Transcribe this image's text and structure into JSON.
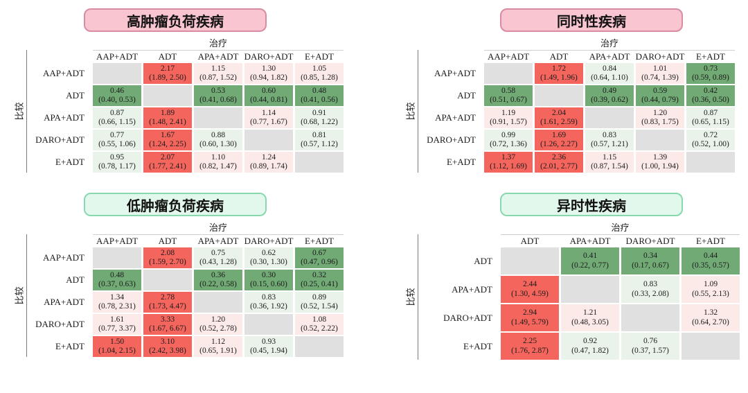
{
  "axis": {
    "treatment": "治疗",
    "comparison": "比较"
  },
  "colors": {
    "sig_red": "#f4655d",
    "ns_red": "#fbeae8",
    "sig_green": "#71aa75",
    "ns_green": "#e9f3ea",
    "diagonal": "#e0e0e0",
    "pink_header_bg": "#f8c5d1",
    "pink_header_border": "#d98ba2",
    "green_header_bg": "#e3f8ec",
    "green_header_border": "#87d8ad"
  },
  "chart_data": [
    {
      "type": "heatmap",
      "title": "高肿瘤负荷疾病",
      "theme": "pink",
      "xlabel": "治疗",
      "ylabel": "比较",
      "value_format": "hazard ratio (95% CI)",
      "columns": [
        "AAP+ADT",
        "ADT",
        "APA+ADT",
        "DARO+ADT",
        "E+ADT"
      ],
      "rows": [
        {
          "label": "AAP+ADT",
          "cells": [
            null,
            {
              "hr": 2.17,
              "ci": [
                1.89,
                2.5
              ],
              "tone": "sig_red"
            },
            {
              "hr": 1.15,
              "ci": [
                0.87,
                1.52
              ],
              "tone": "ns_red"
            },
            {
              "hr": 1.3,
              "ci": [
                0.94,
                1.82
              ],
              "tone": "ns_red"
            },
            {
              "hr": 1.05,
              "ci": [
                0.85,
                1.28
              ],
              "tone": "ns_red"
            }
          ]
        },
        {
          "label": "ADT",
          "cells": [
            {
              "hr": 0.46,
              "ci": [
                0.4,
                0.53
              ],
              "tone": "sig_green"
            },
            null,
            {
              "hr": 0.53,
              "ci": [
                0.41,
                0.68
              ],
              "tone": "sig_green"
            },
            {
              "hr": 0.6,
              "ci": [
                0.44,
                0.81
              ],
              "tone": "sig_green"
            },
            {
              "hr": 0.48,
              "ci": [
                0.41,
                0.56
              ],
              "tone": "sig_green"
            }
          ]
        },
        {
          "label": "APA+ADT",
          "cells": [
            {
              "hr": 0.87,
              "ci": [
                0.66,
                1.15
              ],
              "tone": "ns_green"
            },
            {
              "hr": 1.89,
              "ci": [
                1.48,
                2.41
              ],
              "tone": "sig_red"
            },
            null,
            {
              "hr": 1.14,
              "ci": [
                0.77,
                1.67
              ],
              "tone": "ns_red"
            },
            {
              "hr": 0.91,
              "ci": [
                0.68,
                1.22
              ],
              "tone": "ns_green"
            }
          ]
        },
        {
          "label": "DARO+ADT",
          "cells": [
            {
              "hr": 0.77,
              "ci": [
                0.55,
                1.06
              ],
              "tone": "ns_green"
            },
            {
              "hr": 1.67,
              "ci": [
                1.24,
                2.25
              ],
              "tone": "sig_red"
            },
            {
              "hr": 0.88,
              "ci": [
                0.6,
                1.3
              ],
              "tone": "ns_green"
            },
            null,
            {
              "hr": 0.81,
              "ci": [
                0.57,
                1.12
              ],
              "tone": "ns_green"
            }
          ]
        },
        {
          "label": "E+ADT",
          "cells": [
            {
              "hr": 0.95,
              "ci": [
                0.78,
                1.17
              ],
              "tone": "ns_green"
            },
            {
              "hr": 2.07,
              "ci": [
                1.77,
                2.41
              ],
              "tone": "sig_red"
            },
            {
              "hr": 1.1,
              "ci": [
                0.82,
                1.47
              ],
              "tone": "ns_red"
            },
            {
              "hr": 1.24,
              "ci": [
                0.89,
                1.74
              ],
              "tone": "ns_red"
            },
            null
          ]
        }
      ]
    },
    {
      "type": "heatmap",
      "title": "同时性疾病",
      "theme": "pink",
      "xlabel": "治疗",
      "ylabel": "比较",
      "value_format": "hazard ratio (95% CI)",
      "columns": [
        "AAP+ADT",
        "ADT",
        "APA+ADT",
        "DARO+ADT",
        "E+ADT"
      ],
      "rows": [
        {
          "label": "AAP+ADT",
          "cells": [
            null,
            {
              "hr": 1.72,
              "ci": [
                1.49,
                1.96
              ],
              "tone": "sig_red"
            },
            {
              "hr": 0.84,
              "ci": [
                0.64,
                1.1
              ],
              "tone": "ns_green"
            },
            {
              "hr": 1.01,
              "ci": [
                0.74,
                1.39
              ],
              "tone": "ns_red"
            },
            {
              "hr": 0.73,
              "ci": [
                0.59,
                0.89
              ],
              "tone": "sig_green"
            }
          ]
        },
        {
          "label": "ADT",
          "cells": [
            {
              "hr": 0.58,
              "ci": [
                0.51,
                0.67
              ],
              "tone": "sig_green"
            },
            null,
            {
              "hr": 0.49,
              "ci": [
                0.39,
                0.62
              ],
              "tone": "sig_green"
            },
            {
              "hr": 0.59,
              "ci": [
                0.44,
                0.79
              ],
              "tone": "sig_green"
            },
            {
              "hr": 0.42,
              "ci": [
                0.36,
                0.5
              ],
              "tone": "sig_green"
            }
          ]
        },
        {
          "label": "APA+ADT",
          "cells": [
            {
              "hr": 1.19,
              "ci": [
                0.91,
                1.57
              ],
              "tone": "ns_red"
            },
            {
              "hr": 2.04,
              "ci": [
                1.61,
                2.59
              ],
              "tone": "sig_red"
            },
            null,
            {
              "hr": 1.2,
              "ci": [
                0.83,
                1.75
              ],
              "tone": "ns_red"
            },
            {
              "hr": 0.87,
              "ci": [
                0.65,
                1.15
              ],
              "tone": "ns_green"
            }
          ]
        },
        {
          "label": "DARO+ADT",
          "cells": [
            {
              "hr": 0.99,
              "ci": [
                0.72,
                1.36
              ],
              "tone": "ns_green"
            },
            {
              "hr": 1.69,
              "ci": [
                1.26,
                2.27
              ],
              "tone": "sig_red"
            },
            {
              "hr": 0.83,
              "ci": [
                0.57,
                1.21
              ],
              "tone": "ns_green"
            },
            null,
            {
              "hr": 0.72,
              "ci": [
                0.52,
                1.0
              ],
              "tone": "ns_green"
            }
          ]
        },
        {
          "label": "E+ADT",
          "cells": [
            {
              "hr": 1.37,
              "ci": [
                1.12,
                1.69
              ],
              "tone": "sig_red"
            },
            {
              "hr": 2.36,
              "ci": [
                2.01,
                2.77
              ],
              "tone": "sig_red"
            },
            {
              "hr": 1.15,
              "ci": [
                0.87,
                1.54
              ],
              "tone": "ns_red"
            },
            {
              "hr": 1.39,
              "ci": [
                1.0,
                1.94
              ],
              "tone": "ns_red"
            },
            null
          ]
        }
      ]
    },
    {
      "type": "heatmap",
      "title": "低肿瘤负荷疾病",
      "theme": "green",
      "xlabel": "治疗",
      "ylabel": "比较",
      "value_format": "hazard ratio (95% CI)",
      "columns": [
        "AAP+ADT",
        "ADT",
        "APA+ADT",
        "DARO+ADT",
        "E+ADT"
      ],
      "rows": [
        {
          "label": "AAP+ADT",
          "cells": [
            null,
            {
              "hr": 2.08,
              "ci": [
                1.59,
                2.7
              ],
              "tone": "sig_red"
            },
            {
              "hr": 0.75,
              "ci": [
                0.43,
                1.28
              ],
              "tone": "ns_green"
            },
            {
              "hr": 0.62,
              "ci": [
                0.3,
                1.3
              ],
              "tone": "ns_green"
            },
            {
              "hr": 0.67,
              "ci": [
                0.47,
                0.96
              ],
              "tone": "sig_green"
            }
          ]
        },
        {
          "label": "ADT",
          "cells": [
            {
              "hr": 0.48,
              "ci": [
                0.37,
                0.63
              ],
              "tone": "sig_green"
            },
            null,
            {
              "hr": 0.36,
              "ci": [
                0.22,
                0.58
              ],
              "tone": "sig_green"
            },
            {
              "hr": 0.3,
              "ci": [
                0.15,
                0.6
              ],
              "tone": "sig_green"
            },
            {
              "hr": 0.32,
              "ci": [
                0.25,
                0.41
              ],
              "tone": "sig_green"
            }
          ]
        },
        {
          "label": "APA+ADT",
          "cells": [
            {
              "hr": 1.34,
              "ci": [
                0.78,
                2.31
              ],
              "tone": "ns_red"
            },
            {
              "hr": 2.78,
              "ci": [
                1.73,
                4.47
              ],
              "tone": "sig_red"
            },
            null,
            {
              "hr": 0.83,
              "ci": [
                0.36,
                1.92
              ],
              "tone": "ns_green"
            },
            {
              "hr": 0.89,
              "ci": [
                0.52,
                1.54
              ],
              "tone": "ns_green"
            }
          ]
        },
        {
          "label": "DARO+ADT",
          "cells": [
            {
              "hr": 1.61,
              "ci": [
                0.77,
                3.37
              ],
              "tone": "ns_red"
            },
            {
              "hr": 3.33,
              "ci": [
                1.67,
                6.67
              ],
              "tone": "sig_red"
            },
            {
              "hr": 1.2,
              "ci": [
                0.52,
                2.78
              ],
              "tone": "ns_red"
            },
            null,
            {
              "hr": 1.08,
              "ci": [
                0.52,
                2.22
              ],
              "tone": "ns_red"
            }
          ]
        },
        {
          "label": "E+ADT",
          "cells": [
            {
              "hr": 1.5,
              "ci": [
                1.04,
                2.15
              ],
              "tone": "sig_red"
            },
            {
              "hr": 3.1,
              "ci": [
                2.42,
                3.98
              ],
              "tone": "sig_red"
            },
            {
              "hr": 1.12,
              "ci": [
                0.65,
                1.91
              ],
              "tone": "ns_red"
            },
            {
              "hr": 0.93,
              "ci": [
                0.45,
                1.94
              ],
              "tone": "ns_green"
            },
            null
          ]
        }
      ]
    },
    {
      "type": "heatmap",
      "title": "异时性疾病",
      "theme": "green",
      "xlabel": "治疗",
      "ylabel": "比较",
      "value_format": "hazard ratio (95% CI)",
      "columns": [
        "ADT",
        "APA+ADT",
        "DARO+ADT",
        "E+ADT"
      ],
      "rows": [
        {
          "label": "ADT",
          "cells": [
            null,
            {
              "hr": 0.41,
              "ci": [
                0.22,
                0.77
              ],
              "tone": "sig_green"
            },
            {
              "hr": 0.34,
              "ci": [
                0.17,
                0.67
              ],
              "tone": "sig_green"
            },
            {
              "hr": 0.44,
              "ci": [
                0.35,
                0.57
              ],
              "tone": "sig_green"
            }
          ]
        },
        {
          "label": "APA+ADT",
          "cells": [
            {
              "hr": 2.44,
              "ci": [
                1.3,
                4.59
              ],
              "tone": "sig_red"
            },
            null,
            {
              "hr": 0.83,
              "ci": [
                0.33,
                2.08
              ],
              "tone": "ns_green"
            },
            {
              "hr": 1.09,
              "ci": [
                0.55,
                2.13
              ],
              "tone": "ns_red"
            }
          ]
        },
        {
          "label": "DARO+ADT",
          "cells": [
            {
              "hr": 2.94,
              "ci": [
                1.49,
                5.79
              ],
              "tone": "sig_red"
            },
            {
              "hr": 1.21,
              "ci": [
                0.48,
                3.05
              ],
              "tone": "ns_red"
            },
            null,
            {
              "hr": 1.32,
              "ci": [
                0.64,
                2.7
              ],
              "tone": "ns_red"
            }
          ]
        },
        {
          "label": "E+ADT",
          "cells": [
            {
              "hr": 2.25,
              "ci": [
                1.76,
                2.87
              ],
              "tone": "sig_red"
            },
            {
              "hr": 0.92,
              "ci": [
                0.47,
                1.82
              ],
              "tone": "ns_green"
            },
            {
              "hr": 0.76,
              "ci": [
                0.37,
                1.57
              ],
              "tone": "ns_green"
            },
            null
          ]
        }
      ]
    }
  ]
}
